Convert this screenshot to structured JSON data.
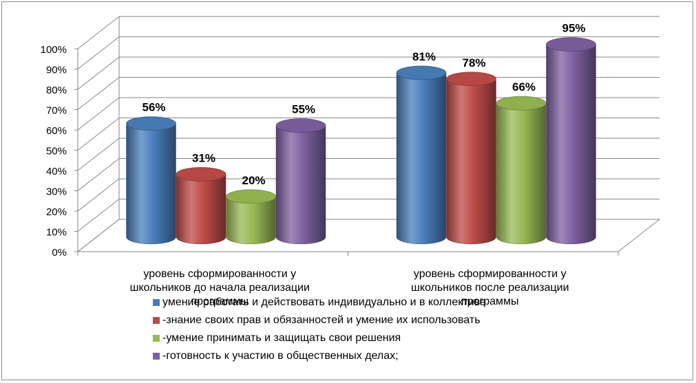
{
  "chart_data": {
    "type": "bar",
    "categories": [
      [
        "уровень сформированности у",
        "школьников до начала реализации",
        "программы"
      ],
      [
        "уровень сформированности у",
        "школьников после реализации",
        "программы"
      ]
    ],
    "series": [
      {
        "name": "умение работать и действовать индивидуально и в коллективе",
        "values": [
          56,
          81
        ],
        "color": "#4a7ebb",
        "marker": "■"
      },
      {
        "name": "-знание своих прав и обязанностей и умение их использовать",
        "values": [
          31,
          78
        ],
        "color": "#be4b48",
        "marker": "■"
      },
      {
        "name": "-умение принимать и защищать свои решения",
        "values": [
          20,
          66
        ],
        "color": "#98b954",
        "marker": "■"
      },
      {
        "name": "-готовность к участию в общественных делах;",
        "values": [
          55,
          95
        ],
        "color": "#7d60a0",
        "marker": "■"
      }
    ],
    "data_labels": [
      [
        "56%",
        "81%"
      ],
      [
        "31%",
        "78%"
      ],
      [
        "20%",
        "66%"
      ],
      [
        "55%",
        "95%"
      ]
    ],
    "y_ticks": [
      "0%",
      "10%",
      "20%",
      "30%",
      "40%",
      "50%",
      "60%",
      "70%",
      "80%",
      "90%",
      "100%"
    ],
    "ylim": [
      0,
      100
    ],
    "grid": true,
    "style": "3d-cylinder",
    "legend_position": "bottom"
  }
}
